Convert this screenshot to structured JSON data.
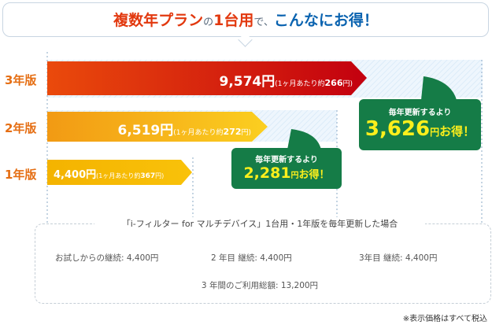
{
  "headline": {
    "part1": "複数年プラン",
    "part2": "の",
    "part3": "1台用",
    "part4": "で、",
    "part5": "こんなにお得！"
  },
  "year_labels": [
    "3年版",
    "2年版",
    "1年版"
  ],
  "bars": [
    {
      "price": "9,574円",
      "note": "(1ヶ月あたり約",
      "monthly": "266",
      "note_end": "円)"
    },
    {
      "price": "6,519円",
      "note": "(1ヶ月あたり約",
      "monthly": "272",
      "note_end": "円)"
    },
    {
      "price": "4,400円",
      "note": "(1ヶ月あたり約",
      "monthly": "367",
      "note_end": "円)"
    }
  ],
  "callouts": [
    {
      "caption": "毎年更新するより",
      "amount": "3,626",
      "unit": "円",
      "gain": "お得！"
    },
    {
      "caption": "毎年更新するより",
      "amount": "2,281",
      "unit": "円",
      "gain": "お得！"
    }
  ],
  "timeline": {
    "title": "「i-フィルター for マルチデバイス」1台用・1年版を毎年更新した場合",
    "steps": [
      "お試しからの継続: 4,400円",
      "2 年目 継続: 4,400円",
      "3年目 継続: 4,400円"
    ],
    "total": "3 年間のご利用総額: 13,200円"
  },
  "footnote": "※表示価格はすべて税込",
  "colors": {
    "bar3_start": "#e8410c",
    "bar3_end": "#c4000e",
    "bar2_start": "#f29a14",
    "bar2_end": "#fbc91c",
    "bar1": "#f5b800",
    "callout": "#157c47",
    "callout_amount": "#fdef1c",
    "year_label": "#e56e13"
  },
  "chart_data": {
    "type": "bar",
    "categories": [
      "3年版",
      "2年版",
      "1年版"
    ],
    "values": [
      9574,
      6519,
      4400
    ],
    "monthly": [
      266,
      272,
      367
    ],
    "savings": {
      "3年版": 3626,
      "2年版": 2281
    },
    "title": "複数年プランの1台用で、こんなにお得！"
  }
}
